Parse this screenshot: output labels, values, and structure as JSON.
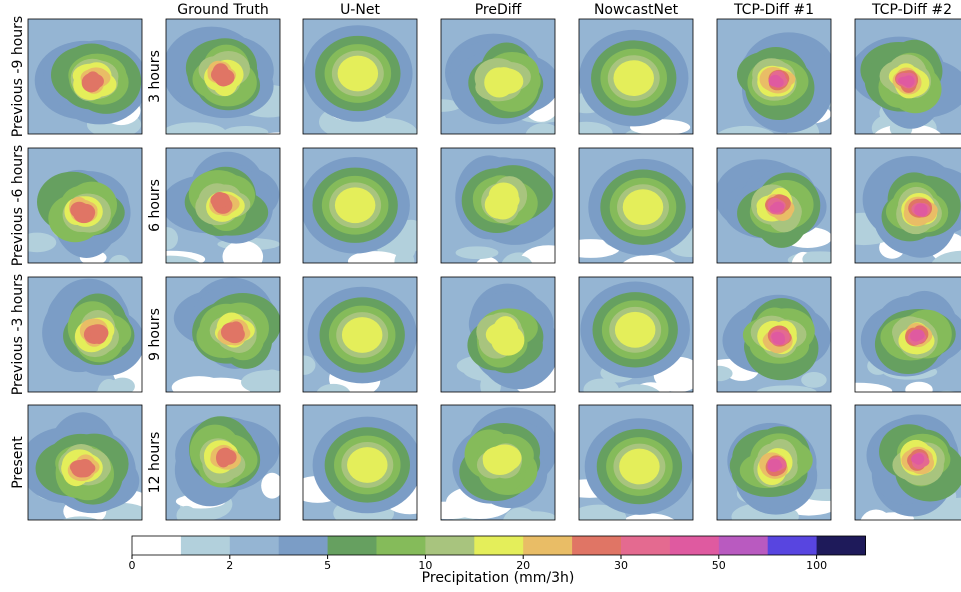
{
  "columns": [
    "Ground Truth",
    "U-Net",
    "PreDiff",
    "NowcastNet",
    "TCP-Diff #1",
    "TCP-Diff #2"
  ],
  "input_rows": [
    "Previous -9 hours",
    "Previous -6 hours",
    "Previous -3 hours",
    "Present"
  ],
  "lead_times": [
    "3 hours",
    "6 hours",
    "9 hours",
    "12 hours"
  ],
  "colorbar": {
    "ticks": [
      "0",
      "2",
      "5",
      "10",
      "20",
      "30",
      "50",
      "100"
    ],
    "label": "Precipitation (mm/3h)"
  }
}
